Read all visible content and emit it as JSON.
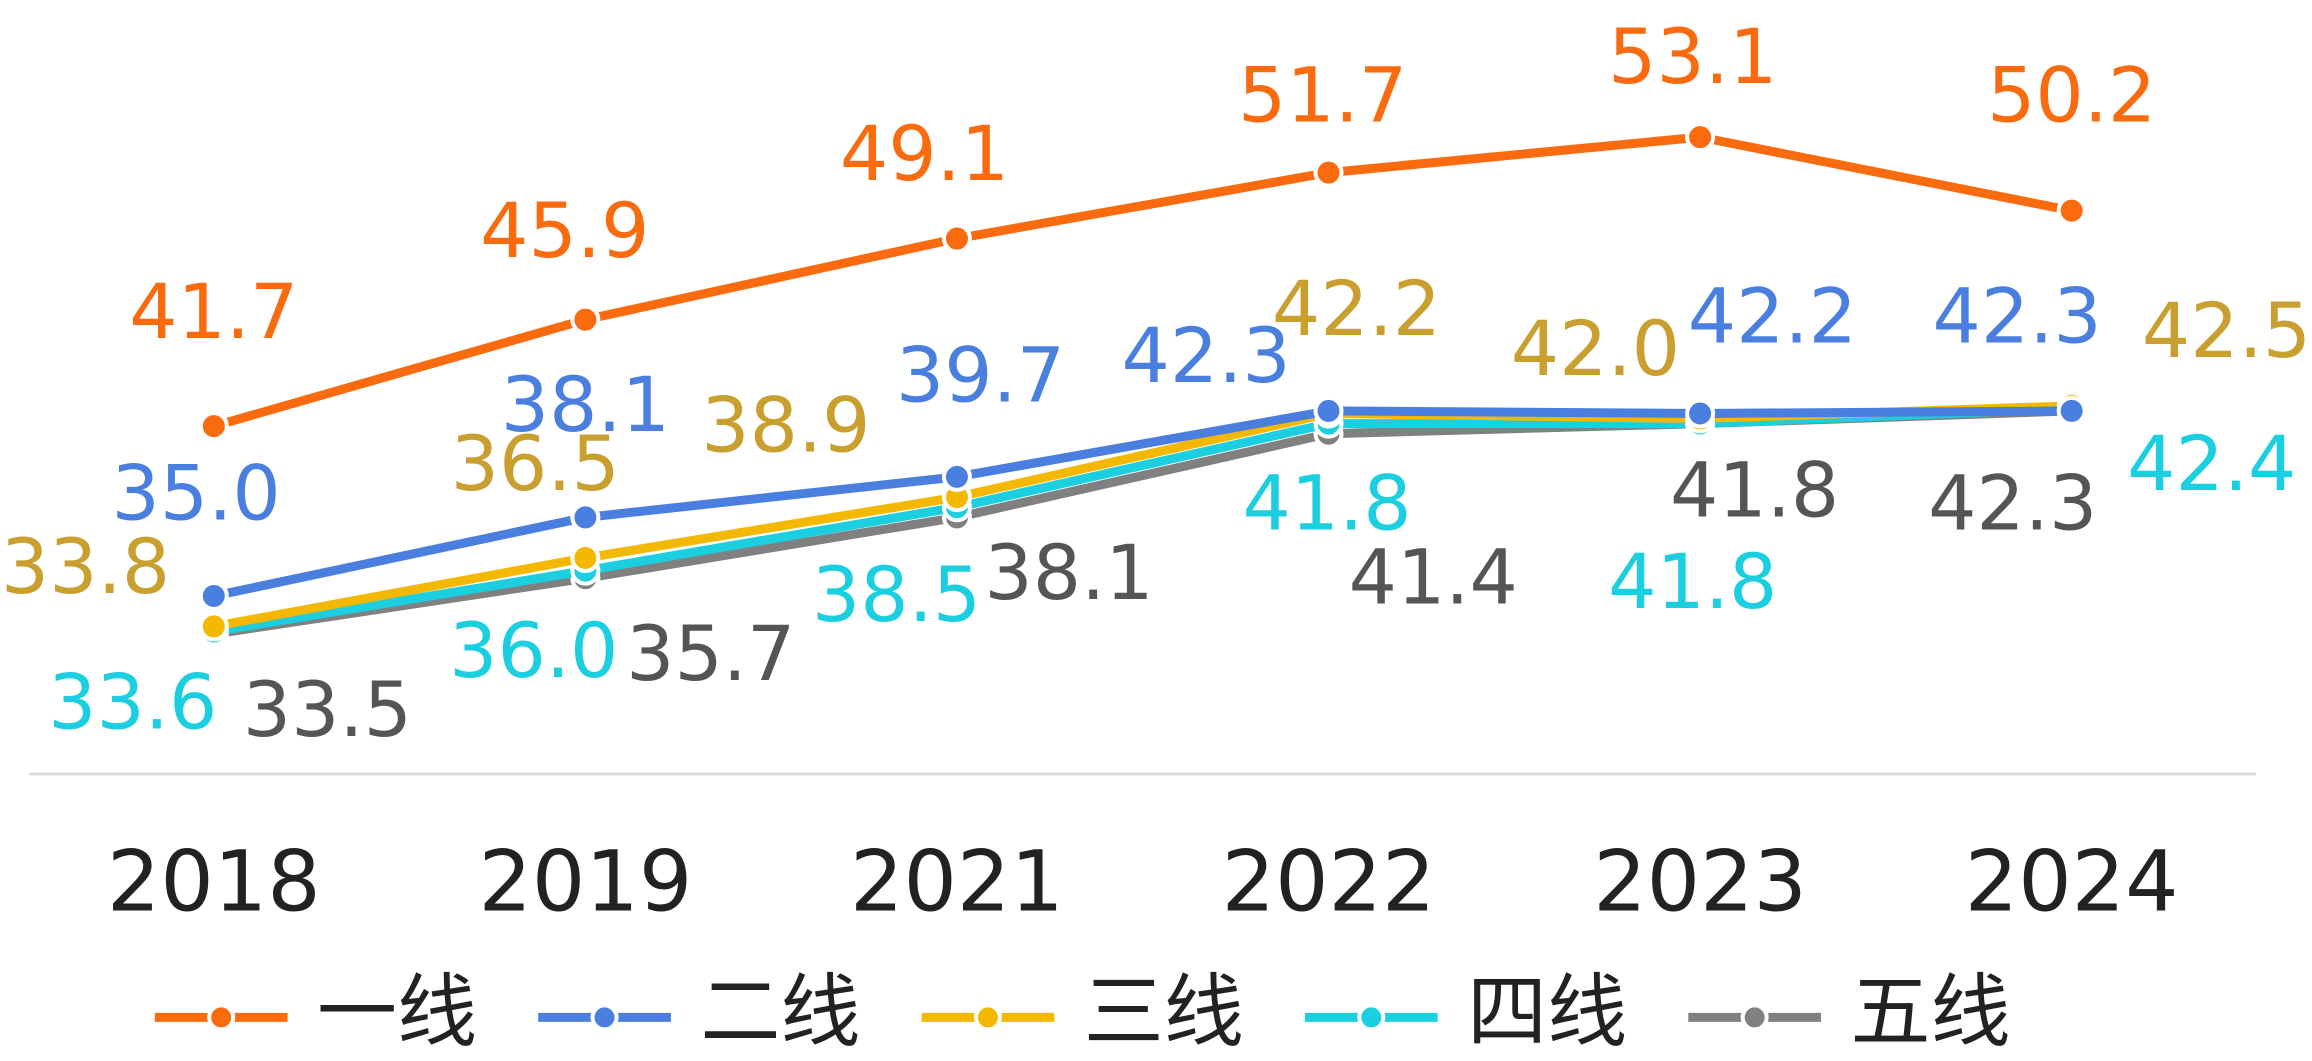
{
  "chart_data": {
    "type": "line",
    "categories": [
      "2018",
      "2019",
      "2021",
      "2022",
      "2023",
      "2024"
    ],
    "series": [
      {
        "name": "一线",
        "color": "#f96b0e",
        "label_color": "#f96b0e",
        "values": [
          41.7,
          45.9,
          49.1,
          51.7,
          53.1,
          50.2
        ],
        "value_labels": [
          "41.7",
          "45.9",
          "49.1",
          "51.7",
          "53.1",
          "50.2"
        ]
      },
      {
        "name": "二线",
        "color": "#4a7fe0",
        "label_color": "#4a7fe0",
        "values": [
          35.0,
          38.1,
          39.7,
          42.3,
          42.2,
          42.3
        ],
        "value_labels": [
          "35.0",
          "38.1",
          "39.7",
          "42.3",
          "42.2",
          "42.3"
        ]
      },
      {
        "name": "三线",
        "color": "#f5b800",
        "label_color": "#c9a030",
        "values": [
          33.8,
          36.5,
          38.9,
          42.2,
          42.0,
          42.5
        ],
        "value_labels": [
          "33.8",
          "36.5",
          "38.9",
          "42.2",
          "42.0",
          "42.5"
        ]
      },
      {
        "name": "四线",
        "color": "#1ccfe0",
        "label_color": "#1ccfe0",
        "values": [
          33.6,
          36.0,
          38.5,
          41.8,
          41.8,
          42.4
        ],
        "value_labels": [
          "33.6",
          "36.0",
          "38.5",
          "41.8",
          "41.8",
          "42.4"
        ]
      },
      {
        "name": "五线",
        "color": "#808080",
        "label_color": "#555555",
        "values": [
          33.5,
          35.7,
          38.1,
          41.4,
          41.8,
          42.3
        ],
        "value_labels": [
          "33.5",
          "35.7",
          "38.1",
          "41.4",
          "41.8",
          "42.3"
        ]
      }
    ],
    "legend": "bottom"
  }
}
